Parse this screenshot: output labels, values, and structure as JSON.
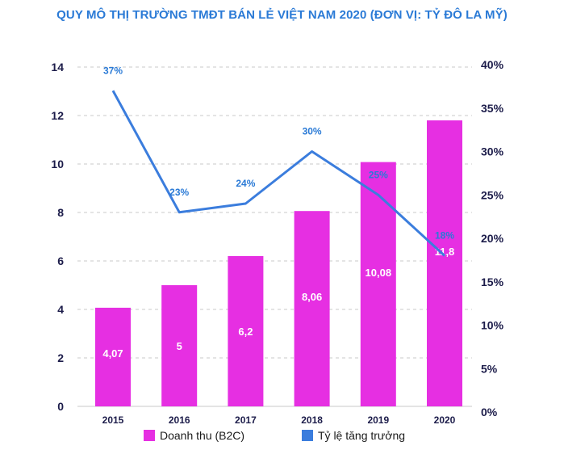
{
  "title": "QUY MÔ THỊ TRƯỜNG TMĐT BÁN LẺ VIỆT NAM 2020 (ĐƠN VỊ: TỶ ĐÔ LA MỸ)",
  "colors": {
    "title": "#2a7ad6",
    "bar": "#e62fe2",
    "line": "#3b7ddd",
    "axis_text": "#1c1c4a",
    "grid": "#c9c9c9",
    "bar_label": "#ffffff",
    "line_label": "#2a7ad6"
  },
  "chart_data": {
    "type": "bar",
    "categories": [
      "2015",
      "2016",
      "2017",
      "2018",
      "2019",
      "2020"
    ],
    "series": [
      {
        "name": "Doanh thu (B2C)",
        "type": "bar",
        "axis": "left",
        "values": [
          4.07,
          5,
          6.2,
          8.06,
          10.08,
          11.8
        ],
        "labels": [
          "4,07",
          "5",
          "6,2",
          "8,06",
          "10,08",
          "11,8"
        ]
      },
      {
        "name": "Tỷ lệ tăng trưởng",
        "type": "line",
        "axis": "right",
        "values": [
          37,
          23,
          24,
          30,
          25,
          18
        ],
        "labels": [
          "37%",
          "23%",
          "24%",
          "30%",
          "25%",
          "18%"
        ]
      }
    ],
    "left_axis": {
      "min": 0,
      "max": 14,
      "ticks": [
        0,
        2,
        4,
        6,
        8,
        10,
        12,
        14
      ],
      "tick_labels": [
        "0",
        "2",
        "4",
        "6",
        "8",
        "10",
        "12",
        "14"
      ]
    },
    "right_axis": {
      "min": 0,
      "max": 40,
      "ticks": [
        0,
        5,
        10,
        15,
        20,
        25,
        30,
        35,
        40
      ],
      "tick_labels": [
        "0%",
        "5%",
        "10%",
        "15%",
        "20%",
        "25%",
        "30%",
        "35%",
        "40%"
      ]
    },
    "grid": true,
    "legend_position": "bottom"
  },
  "legend": {
    "bar_label": "Doanh thu (B2C)",
    "line_label": "Tỷ lệ tăng trưởng"
  }
}
